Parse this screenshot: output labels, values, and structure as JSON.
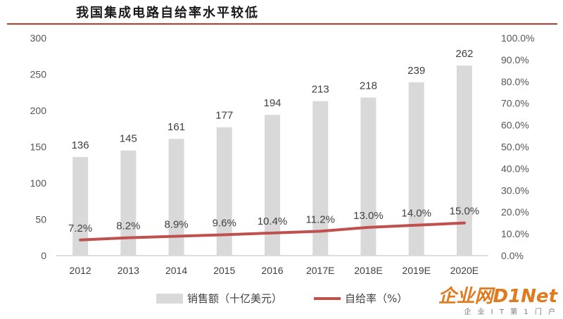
{
  "title": "我国集成电路自给率水平较低",
  "watermark": {
    "logo": "企业网D1Net",
    "sub": "企 业 I T 第 1 门 户"
  },
  "colors": {
    "bar": "#d9d9d9",
    "line": "#c0504d",
    "title_rule": "#c0392b"
  },
  "chart_data": {
    "type": "bar",
    "categories": [
      "2012",
      "2013",
      "2014",
      "2015",
      "2016",
      "2017E",
      "2018E",
      "2019E",
      "2020E"
    ],
    "series": [
      {
        "name": "销售额（十亿美元）",
        "type": "bar",
        "axis": "left",
        "values": [
          136,
          145,
          161,
          177,
          194,
          213,
          218,
          239,
          262
        ],
        "labels": [
          "136",
          "145",
          "161",
          "177",
          "194",
          "213",
          "218",
          "239",
          "262"
        ]
      },
      {
        "name": "自给率（%）",
        "type": "line",
        "axis": "right",
        "values": [
          7.2,
          8.2,
          8.9,
          9.6,
          10.4,
          11.2,
          13.0,
          14.0,
          15.0
        ],
        "labels": [
          "7.2%",
          "8.2%",
          "8.9%",
          "9.6%",
          "10.4%",
          "11.2%",
          "13.0%",
          "14.0%",
          "15.0%"
        ]
      }
    ],
    "y_left": {
      "ylim": [
        0,
        300
      ],
      "ticks": [
        "0",
        "50",
        "100",
        "150",
        "200",
        "250",
        "300"
      ]
    },
    "y_right": {
      "ylim": [
        0,
        100
      ],
      "ticks": [
        "0.0%",
        "10.0%",
        "20.0%",
        "30.0%",
        "40.0%",
        "50.0%",
        "60.0%",
        "70.0%",
        "80.0%",
        "90.0%",
        "100.0%"
      ]
    },
    "grid": false,
    "legend": "bottom-center"
  }
}
